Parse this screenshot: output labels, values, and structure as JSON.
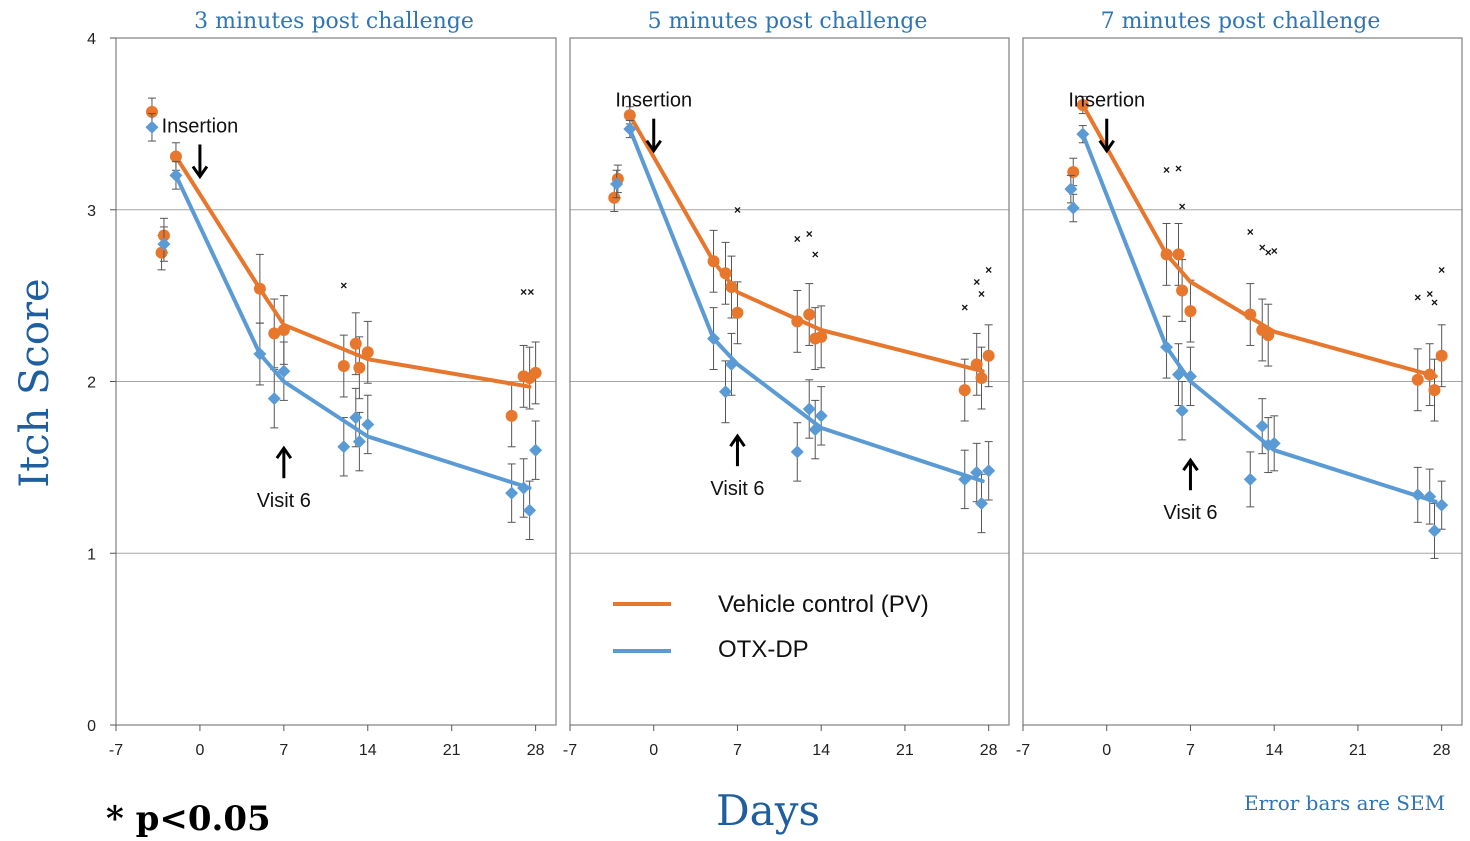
{
  "colors": {
    "vehicle": "#e8772e",
    "otx": "#5b9bd5",
    "title_blue": "#2e75b6",
    "grid": "#a6a6a6"
  },
  "y_axis_title": "Itch Score",
  "x_axis_title": "Days",
  "footnote": "* p<0.05",
  "error_note": "Error bars are SEM",
  "legend": {
    "vehicle": "Vehicle control (PV)",
    "otx": "OTX-DP"
  },
  "chart_data": [
    {
      "type": "scatter",
      "title": "3 minutes post challenge",
      "xlim": [
        -7,
        30
      ],
      "ylim": [
        0,
        4
      ],
      "x_ticks": [
        "-7",
        "0",
        "7",
        "14",
        "21",
        "28"
      ],
      "y_ticks": [
        "0",
        "1",
        "2",
        "3",
        "4"
      ],
      "annotations": [
        {
          "text": "Insertion",
          "x": 0,
          "y": 3.45,
          "arrow": "down"
        },
        {
          "text": "Visit 6",
          "x": 7,
          "y": 1.6,
          "arrow": "up"
        }
      ],
      "series": [
        {
          "name": "Vehicle control (PV)",
          "points": [
            {
              "x": -4,
              "y": 3.57,
              "e": 0.08
            },
            {
              "x": -3,
              "y": 2.85,
              "e": 0.1
            },
            {
              "x": -3.2,
              "y": 2.75,
              "e": 0.1
            },
            {
              "x": -2,
              "y": 3.31,
              "e": 0.08
            },
            {
              "x": 5,
              "y": 2.54,
              "e": 0.2
            },
            {
              "x": 6.2,
              "y": 2.28,
              "e": 0.2
            },
            {
              "x": 7,
              "y": 2.3,
              "e": 0.2
            },
            {
              "x": 12,
              "y": 2.09,
              "e": 0.18
            },
            {
              "x": 13,
              "y": 2.22,
              "e": 0.18
            },
            {
              "x": 13.3,
              "y": 2.08,
              "e": 0.18
            },
            {
              "x": 14,
              "y": 2.17,
              "e": 0.18
            },
            {
              "x": 26,
              "y": 1.8,
              "e": 0.18
            },
            {
              "x": 27,
              "y": 2.03,
              "e": 0.18
            },
            {
              "x": 27.5,
              "y": 2.02,
              "e": 0.18
            },
            {
              "x": 28,
              "y": 2.05,
              "e": 0.18
            }
          ],
          "trend": [
            {
              "x": -2,
              "y": 3.31
            },
            {
              "x": 5,
              "y": 2.54
            },
            {
              "x": 7,
              "y": 2.33
            },
            {
              "x": 14,
              "y": 2.13
            },
            {
              "x": 27.5,
              "y": 1.97
            }
          ]
        },
        {
          "name": "OTX-DP",
          "points": [
            {
              "x": -4,
              "y": 3.48,
              "e": 0.08
            },
            {
              "x": -3,
              "y": 2.8,
              "e": 0.1
            },
            {
              "x": -2,
              "y": 3.2,
              "e": 0.08
            },
            {
              "x": 5,
              "y": 2.16,
              "e": 0.18
            },
            {
              "x": 6.2,
              "y": 1.9,
              "e": 0.17
            },
            {
              "x": 7,
              "y": 2.06,
              "e": 0.17
            },
            {
              "x": 12,
              "y": 1.62,
              "e": 0.17
            },
            {
              "x": 13,
              "y": 1.79,
              "e": 0.17
            },
            {
              "x": 13.3,
              "y": 1.65,
              "e": 0.17
            },
            {
              "x": 14,
              "y": 1.75,
              "e": 0.17
            },
            {
              "x": 26,
              "y": 1.35,
              "e": 0.17
            },
            {
              "x": 27,
              "y": 1.38,
              "e": 0.17
            },
            {
              "x": 27.5,
              "y": 1.25,
              "e": 0.17
            },
            {
              "x": 28,
              "y": 1.6,
              "e": 0.17
            }
          ],
          "trend": [
            {
              "x": -2,
              "y": 3.2
            },
            {
              "x": 5,
              "y": 2.16
            },
            {
              "x": 7,
              "y": 2.0
            },
            {
              "x": 14,
              "y": 1.68
            },
            {
              "x": 27.5,
              "y": 1.38
            }
          ]
        }
      ],
      "significance_marks": [
        {
          "x": 12,
          "y": 2.56
        },
        {
          "x": 27,
          "y": 2.52
        },
        {
          "x": 27.6,
          "y": 2.52
        }
      ]
    },
    {
      "type": "scatter",
      "title": "5 minutes post challenge",
      "xlim": [
        -7,
        30
      ],
      "ylim": [
        0,
        4
      ],
      "x_ticks": [
        "-7",
        "0",
        "7",
        "14",
        "21",
        "28"
      ],
      "y_ticks": [
        "0",
        "1",
        "2",
        "3",
        "4"
      ],
      "annotations": [
        {
          "text": "Insertion",
          "x": 0,
          "y": 3.6,
          "arrow": "down"
        },
        {
          "text": "Visit 6",
          "x": 7,
          "y": 1.67,
          "arrow": "up"
        }
      ],
      "series": [
        {
          "name": "Vehicle control (PV)",
          "points": [
            {
              "x": -3,
              "y": 3.18,
              "e": 0.08
            },
            {
              "x": -3.3,
              "y": 3.07,
              "e": 0.08
            },
            {
              "x": -2,
              "y": 3.55,
              "e": 0.05
            },
            {
              "x": 5,
              "y": 2.7,
              "e": 0.18
            },
            {
              "x": 6,
              "y": 2.63,
              "e": 0.18
            },
            {
              "x": 6.5,
              "y": 2.55,
              "e": 0.18
            },
            {
              "x": 7,
              "y": 2.4,
              "e": 0.18
            },
            {
              "x": 12,
              "y": 2.35,
              "e": 0.18
            },
            {
              "x": 13,
              "y": 2.39,
              "e": 0.18
            },
            {
              "x": 13.5,
              "y": 2.25,
              "e": 0.18
            },
            {
              "x": 14,
              "y": 2.26,
              "e": 0.18
            },
            {
              "x": 26,
              "y": 1.95,
              "e": 0.18
            },
            {
              "x": 27,
              "y": 2.1,
              "e": 0.18
            },
            {
              "x": 27.4,
              "y": 2.02,
              "e": 0.18
            },
            {
              "x": 28,
              "y": 2.15,
              "e": 0.18
            }
          ],
          "trend": [
            {
              "x": -2,
              "y": 3.55
            },
            {
              "x": 5,
              "y": 2.7
            },
            {
              "x": 7,
              "y": 2.52
            },
            {
              "x": 14,
              "y": 2.3
            },
            {
              "x": 27.5,
              "y": 2.06
            }
          ]
        },
        {
          "name": "OTX-DP",
          "points": [
            {
              "x": -3.1,
              "y": 3.15,
              "e": 0.08
            },
            {
              "x": -2,
              "y": 3.47,
              "e": 0.05
            },
            {
              "x": 5,
              "y": 2.25,
              "e": 0.18
            },
            {
              "x": 6,
              "y": 1.94,
              "e": 0.18
            },
            {
              "x": 6.5,
              "y": 2.1,
              "e": 0.18
            },
            {
              "x": 12,
              "y": 1.59,
              "e": 0.17
            },
            {
              "x": 13,
              "y": 1.84,
              "e": 0.17
            },
            {
              "x": 13.5,
              "y": 1.72,
              "e": 0.17
            },
            {
              "x": 14,
              "y": 1.8,
              "e": 0.17
            },
            {
              "x": 26,
              "y": 1.43,
              "e": 0.17
            },
            {
              "x": 27,
              "y": 1.47,
              "e": 0.17
            },
            {
              "x": 27.4,
              "y": 1.29,
              "e": 0.17
            },
            {
              "x": 28,
              "y": 1.48,
              "e": 0.17
            }
          ],
          "trend": [
            {
              "x": -2,
              "y": 3.47
            },
            {
              "x": 5,
              "y": 2.25
            },
            {
              "x": 7,
              "y": 2.1
            },
            {
              "x": 14,
              "y": 1.73
            },
            {
              "x": 27.5,
              "y": 1.42
            }
          ]
        }
      ],
      "significance_marks": [
        {
          "x": 7,
          "y": 3.0
        },
        {
          "x": 12,
          "y": 2.83
        },
        {
          "x": 13,
          "y": 2.86
        },
        {
          "x": 13.5,
          "y": 2.74
        },
        {
          "x": 26,
          "y": 2.43
        },
        {
          "x": 27,
          "y": 2.58
        },
        {
          "x": 27.4,
          "y": 2.51
        },
        {
          "x": 28,
          "y": 2.65
        }
      ]
    },
    {
      "type": "scatter",
      "title": "7 minutes post challenge",
      "xlim": [
        -7,
        30
      ],
      "ylim": [
        0,
        4
      ],
      "x_ticks": [
        "-7",
        "0",
        "7",
        "14",
        "21",
        "28"
      ],
      "y_ticks": [
        "0",
        "1",
        "2",
        "3",
        "4"
      ],
      "annotations": [
        {
          "text": "Insertion",
          "x": 0,
          "y": 3.6,
          "arrow": "down"
        },
        {
          "text": "Visit 6",
          "x": 7,
          "y": 1.53,
          "arrow": "up"
        }
      ],
      "series": [
        {
          "name": "Vehicle control (PV)",
          "points": [
            {
              "x": -2.8,
              "y": 3.22,
              "e": 0.08
            },
            {
              "x": -2,
              "y": 3.61,
              "e": 0.05
            },
            {
              "x": 5,
              "y": 2.74,
              "e": 0.18
            },
            {
              "x": 6,
              "y": 2.74,
              "e": 0.18
            },
            {
              "x": 6.3,
              "y": 2.53,
              "e": 0.18
            },
            {
              "x": 7,
              "y": 2.41,
              "e": 0.18
            },
            {
              "x": 12,
              "y": 2.39,
              "e": 0.18
            },
            {
              "x": 13,
              "y": 2.3,
              "e": 0.18
            },
            {
              "x": 13.5,
              "y": 2.27,
              "e": 0.18
            },
            {
              "x": 26,
              "y": 2.01,
              "e": 0.18
            },
            {
              "x": 27,
              "y": 2.04,
              "e": 0.18
            },
            {
              "x": 27.4,
              "y": 1.95,
              "e": 0.18
            },
            {
              "x": 28,
              "y": 2.15,
              "e": 0.18
            }
          ],
          "trend": [
            {
              "x": -2,
              "y": 3.61
            },
            {
              "x": 5,
              "y": 2.74
            },
            {
              "x": 7,
              "y": 2.58
            },
            {
              "x": 14,
              "y": 2.29
            },
            {
              "x": 27.5,
              "y": 2.03
            }
          ]
        },
        {
          "name": "OTX-DP",
          "points": [
            {
              "x": -3,
              "y": 3.12,
              "e": 0.08
            },
            {
              "x": -2.8,
              "y": 3.01,
              "e": 0.08
            },
            {
              "x": -2,
              "y": 3.44,
              "e": 0.05
            },
            {
              "x": 5,
              "y": 2.2,
              "e": 0.18
            },
            {
              "x": 6,
              "y": 2.04,
              "e": 0.18
            },
            {
              "x": 6.3,
              "y": 1.83,
              "e": 0.17
            },
            {
              "x": 7,
              "y": 2.03,
              "e": 0.17
            },
            {
              "x": 12,
              "y": 1.43,
              "e": 0.16
            },
            {
              "x": 13,
              "y": 1.74,
              "e": 0.16
            },
            {
              "x": 13.5,
              "y": 1.63,
              "e": 0.16
            },
            {
              "x": 14,
              "y": 1.64,
              "e": 0.16
            },
            {
              "x": 26,
              "y": 1.34,
              "e": 0.16
            },
            {
              "x": 27,
              "y": 1.33,
              "e": 0.16
            },
            {
              "x": 27.4,
              "y": 1.13,
              "e": 0.16
            },
            {
              "x": 28,
              "y": 1.28,
              "e": 0.14
            }
          ],
          "trend": [
            {
              "x": -2,
              "y": 3.44
            },
            {
              "x": 5,
              "y": 2.2
            },
            {
              "x": 7,
              "y": 2.0
            },
            {
              "x": 14,
              "y": 1.6
            },
            {
              "x": 27.5,
              "y": 1.3
            }
          ]
        }
      ],
      "significance_marks": [
        {
          "x": 5,
          "y": 3.23
        },
        {
          "x": 6,
          "y": 3.24
        },
        {
          "x": 6.3,
          "y": 3.02
        },
        {
          "x": 12,
          "y": 2.87
        },
        {
          "x": 13,
          "y": 2.78
        },
        {
          "x": 13.5,
          "y": 2.75
        },
        {
          "x": 14,
          "y": 2.76
        },
        {
          "x": 26,
          "y": 2.49
        },
        {
          "x": 27,
          "y": 2.51
        },
        {
          "x": 27.4,
          "y": 2.46
        },
        {
          "x": 28,
          "y": 2.65
        }
      ]
    }
  ]
}
